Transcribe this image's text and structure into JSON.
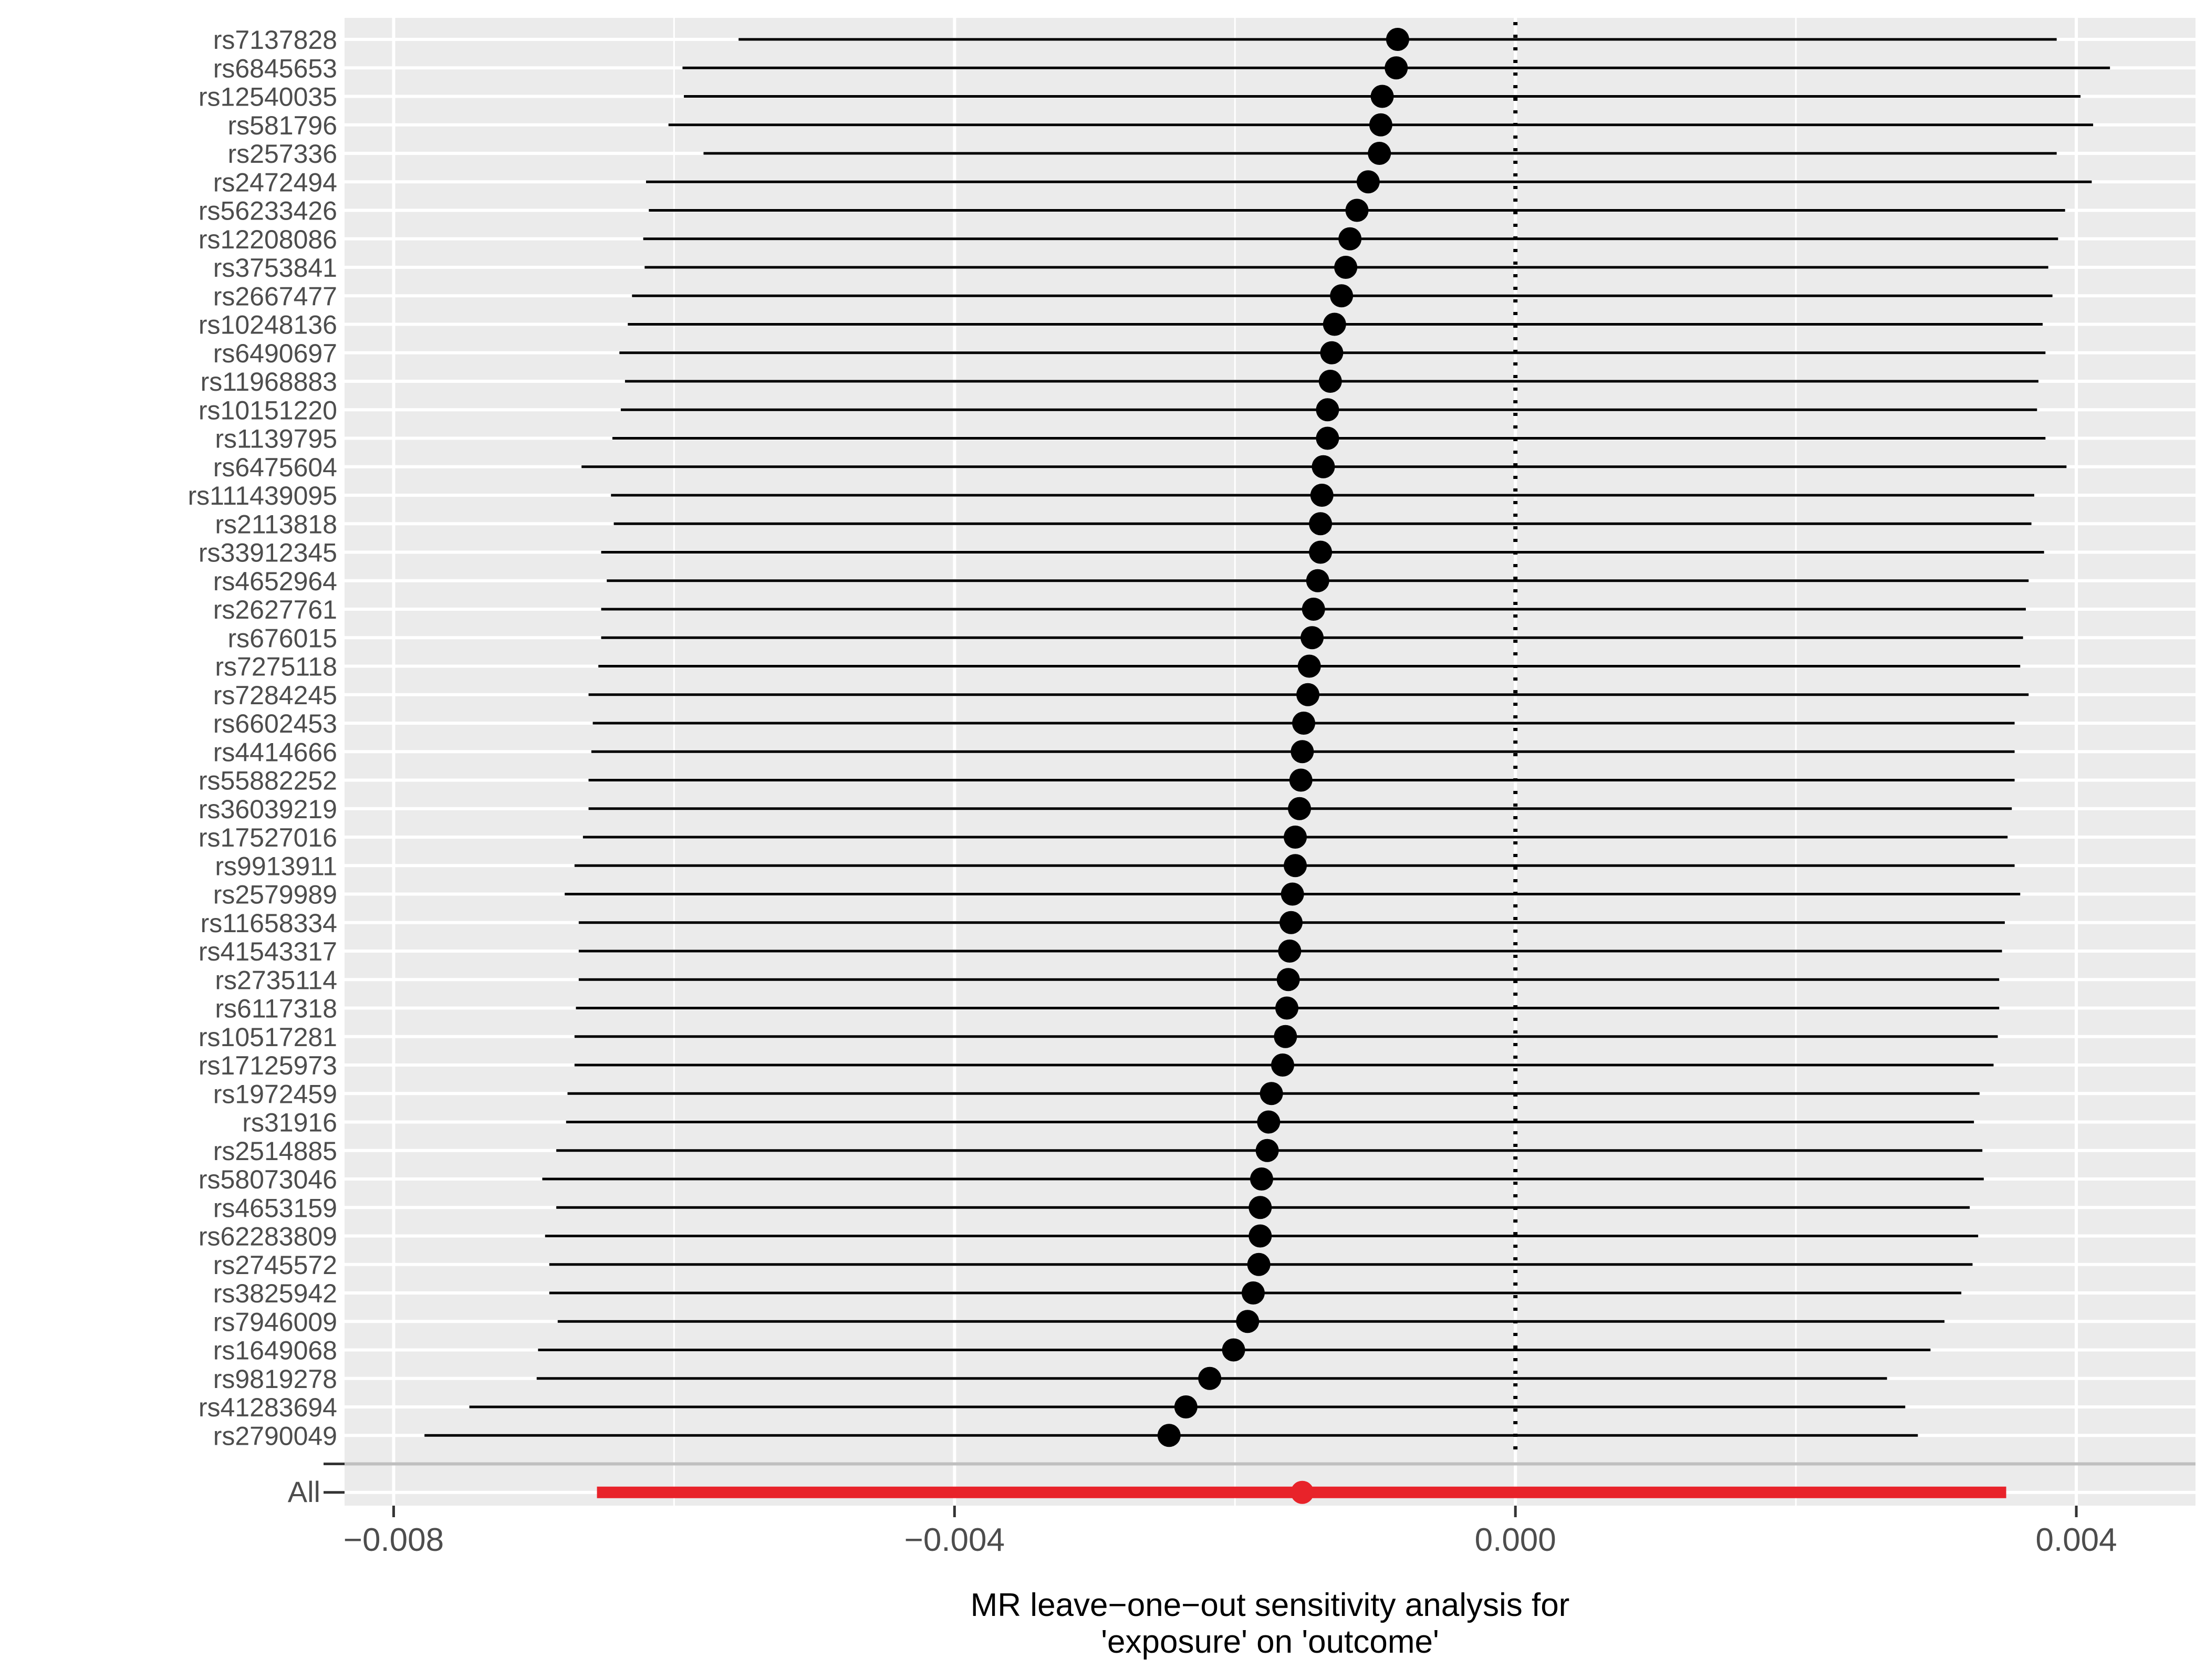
{
  "chart_data": {
    "type": "scatter",
    "subtype": "forest-plot",
    "title": "",
    "xlabel": "MR leave−one−out sensitivity analysis for\n'exposure' on 'outcome'",
    "ylabel": "",
    "xlim": [
      -0.00835,
      0.00485
    ],
    "x_ticks": [
      -0.008,
      -0.004,
      0.0,
      0.004
    ],
    "x_tick_labels": [
      "−0.008",
      "−0.004",
      "0.000",
      "0.004"
    ],
    "reference_line": 0.0,
    "grid": true,
    "legend": "none",
    "colors": {
      "panel": "#ebebeb",
      "grid": "#ffffff",
      "point": "#000000",
      "line": "#000000",
      "overall": "#e8232a",
      "separator": "#bfbfbf",
      "tick_label": "#4d4d4d"
    },
    "snps": [
      {
        "label": "rs7137828",
        "b": -0.00084,
        "lo": -0.00554,
        "hi": 0.00386
      },
      {
        "label": "rs6845653",
        "b": -0.00085,
        "lo": -0.00594,
        "hi": 0.00424
      },
      {
        "label": "rs12540035",
        "b": -0.00095,
        "lo": -0.00593,
        "hi": 0.00403
      },
      {
        "label": "rs581796",
        "b": -0.00096,
        "lo": -0.00604,
        "hi": 0.00412
      },
      {
        "label": "rs257336",
        "b": -0.00097,
        "lo": -0.00579,
        "hi": 0.00386
      },
      {
        "label": "rs2472494",
        "b": -0.00105,
        "lo": -0.0062,
        "hi": 0.00411
      },
      {
        "label": "rs56233426",
        "b": -0.00113,
        "lo": -0.00618,
        "hi": 0.00392
      },
      {
        "label": "rs12208086",
        "b": -0.00118,
        "lo": -0.00622,
        "hi": 0.00387
      },
      {
        "label": "rs3753841",
        "b": -0.00121,
        "lo": -0.00621,
        "hi": 0.0038
      },
      {
        "label": "rs2667477",
        "b": -0.00124,
        "lo": -0.0063,
        "hi": 0.00383
      },
      {
        "label": "rs10248136",
        "b": -0.00129,
        "lo": -0.00633,
        "hi": 0.00376
      },
      {
        "label": "rs6490697",
        "b": -0.00131,
        "lo": -0.00639,
        "hi": 0.00378
      },
      {
        "label": "rs11968883",
        "b": -0.00132,
        "lo": -0.00635,
        "hi": 0.00373
      },
      {
        "label": "rs10151220",
        "b": -0.00134,
        "lo": -0.00638,
        "hi": 0.00372
      },
      {
        "label": "rs1139795",
        "b": -0.00134,
        "lo": -0.00644,
        "hi": 0.00378
      },
      {
        "label": "rs6475604",
        "b": -0.00137,
        "lo": -0.00666,
        "hi": 0.00393
      },
      {
        "label": "rs111439095",
        "b": -0.00138,
        "lo": -0.00645,
        "hi": 0.0037
      },
      {
        "label": "rs2113818",
        "b": -0.00139,
        "lo": -0.00643,
        "hi": 0.00368
      },
      {
        "label": "rs33912345",
        "b": -0.00139,
        "lo": -0.00652,
        "hi": 0.00377
      },
      {
        "label": "rs4652964",
        "b": -0.00141,
        "lo": -0.00648,
        "hi": 0.00366
      },
      {
        "label": "rs2627761",
        "b": -0.00144,
        "lo": -0.00652,
        "hi": 0.00364
      },
      {
        "label": "rs676015",
        "b": -0.00145,
        "lo": -0.00652,
        "hi": 0.00362
      },
      {
        "label": "rs7275118",
        "b": -0.00147,
        "lo": -0.00654,
        "hi": 0.0036
      },
      {
        "label": "rs7284245",
        "b": -0.00148,
        "lo": -0.00661,
        "hi": 0.00366
      },
      {
        "label": "rs6602453",
        "b": -0.00151,
        "lo": -0.00658,
        "hi": 0.00356
      },
      {
        "label": "rs4414666",
        "b": -0.00152,
        "lo": -0.00659,
        "hi": 0.00356
      },
      {
        "label": "rs55882252",
        "b": -0.00153,
        "lo": -0.00661,
        "hi": 0.00356
      },
      {
        "label": "rs36039219",
        "b": -0.00154,
        "lo": -0.00661,
        "hi": 0.00354
      },
      {
        "label": "rs17527016",
        "b": -0.00157,
        "lo": -0.00665,
        "hi": 0.00351
      },
      {
        "label": "rs9913911",
        "b": -0.00157,
        "lo": -0.00671,
        "hi": 0.00356
      },
      {
        "label": "rs2579989",
        "b": -0.00159,
        "lo": -0.00678,
        "hi": 0.0036
      },
      {
        "label": "rs11658334",
        "b": -0.0016,
        "lo": -0.00668,
        "hi": 0.00349
      },
      {
        "label": "rs41543317",
        "b": -0.00161,
        "lo": -0.00668,
        "hi": 0.00347
      },
      {
        "label": "rs2735114",
        "b": -0.00162,
        "lo": -0.00668,
        "hi": 0.00345
      },
      {
        "label": "rs6117318",
        "b": -0.00163,
        "lo": -0.0067,
        "hi": 0.00345
      },
      {
        "label": "rs10517281",
        "b": -0.00164,
        "lo": -0.00671,
        "hi": 0.00344
      },
      {
        "label": "rs17125973",
        "b": -0.00166,
        "lo": -0.00671,
        "hi": 0.00341
      },
      {
        "label": "rs1972459",
        "b": -0.00174,
        "lo": -0.00676,
        "hi": 0.00331
      },
      {
        "label": "rs31916",
        "b": -0.00176,
        "lo": -0.00677,
        "hi": 0.00327
      },
      {
        "label": "rs2514885",
        "b": -0.00177,
        "lo": -0.00684,
        "hi": 0.00333
      },
      {
        "label": "rs58073046",
        "b": -0.00181,
        "lo": -0.00694,
        "hi": 0.00334
      },
      {
        "label": "rs4653159",
        "b": -0.00182,
        "lo": -0.00684,
        "hi": 0.00324
      },
      {
        "label": "rs62283809",
        "b": -0.00182,
        "lo": -0.00692,
        "hi": 0.0033
      },
      {
        "label": "rs2745572",
        "b": -0.00183,
        "lo": -0.00689,
        "hi": 0.00326
      },
      {
        "label": "rs3825942",
        "b": -0.00187,
        "lo": -0.00689,
        "hi": 0.00318
      },
      {
        "label": "rs7946009",
        "b": -0.00191,
        "lo": -0.00683,
        "hi": 0.00306
      },
      {
        "label": "rs1649068",
        "b": -0.00201,
        "lo": -0.00697,
        "hi": 0.00296
      },
      {
        "label": "rs9819278",
        "b": -0.00218,
        "lo": -0.00698,
        "hi": 0.00265
      },
      {
        "label": "rs41283694",
        "b": -0.00235,
        "lo": -0.00746,
        "hi": 0.00278
      },
      {
        "label": "rs2790049",
        "b": -0.00247,
        "lo": -0.00778,
        "hi": 0.00287
      }
    ],
    "overall": {
      "label": "All",
      "b": -0.00152,
      "lo": -0.00655,
      "hi": 0.0035
    }
  }
}
